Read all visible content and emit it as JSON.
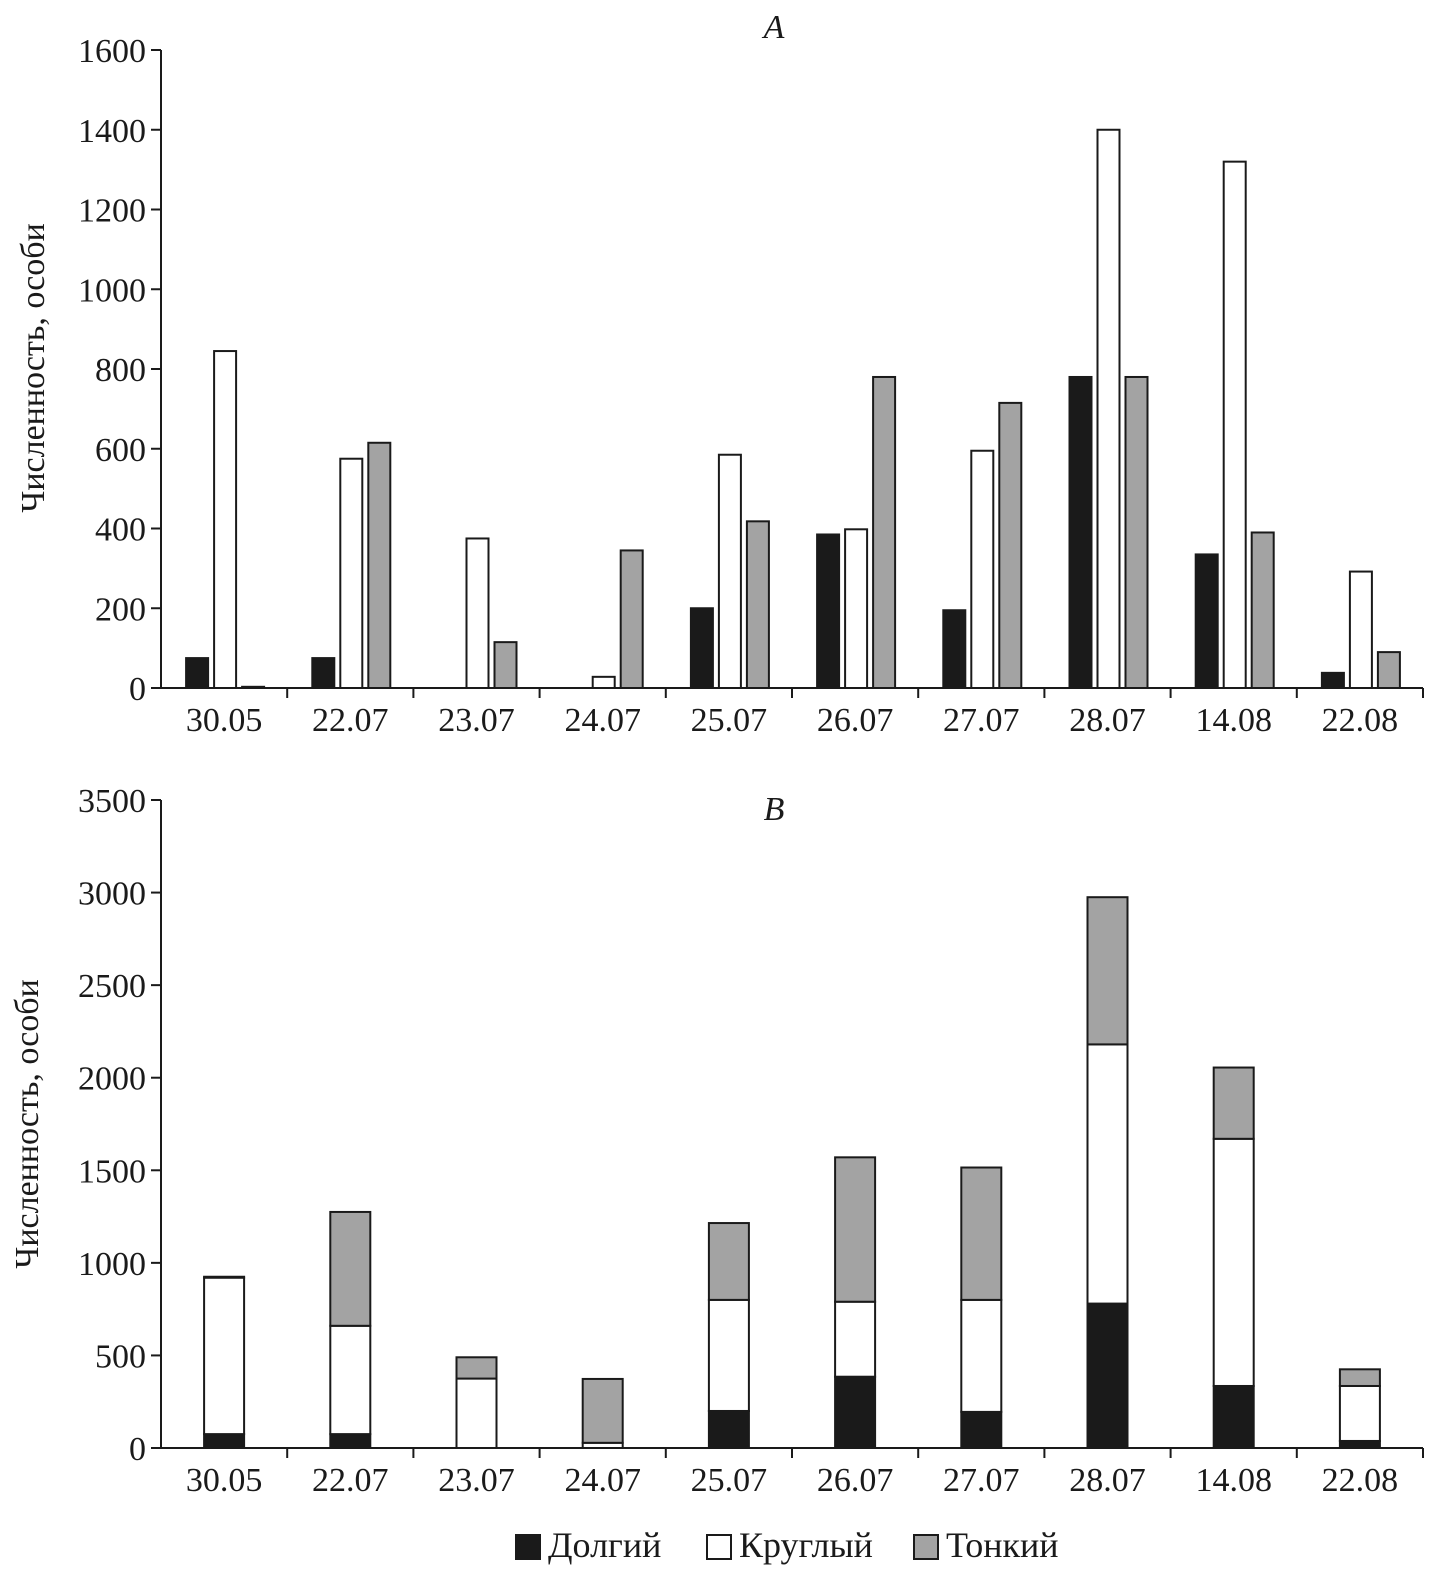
{
  "colors": {
    "Долгий": "#1a1a1a",
    "Круглый": "#ffffff",
    "Тонкий": "#a3a3a3",
    "axis": "#1a1a1a"
  },
  "legend": {
    "placement": "bottom-center",
    "items": [
      "Долгий",
      "Круглый",
      "Тонкий"
    ]
  },
  "chart_data": [
    {
      "panel": "A",
      "type": "bar",
      "title": "A",
      "ylabel": "Численность, особи",
      "xlabel": "",
      "ylim": [
        0,
        1600
      ],
      "yticks": [
        0,
        200,
        400,
        600,
        800,
        1000,
        1200,
        1400,
        1600
      ],
      "categories": [
        "30.05",
        "22.07",
        "23.07",
        "24.07",
        "25.07",
        "26.07",
        "27.07",
        "28.07",
        "14.08",
        "22.08"
      ],
      "series": [
        {
          "name": "Долгий",
          "values": [
            75,
            75,
            0,
            0,
            200,
            385,
            195,
            780,
            335,
            38
          ]
        },
        {
          "name": "Круглый",
          "values": [
            845,
            575,
            375,
            28,
            585,
            398,
            595,
            1400,
            1320,
            292
          ]
        },
        {
          "name": "Тонкий",
          "values": [
            3,
            615,
            115,
            345,
            418,
            780,
            715,
            780,
            390,
            90
          ]
        }
      ]
    },
    {
      "panel": "B",
      "type": "bar",
      "stacked": true,
      "title": "B",
      "ylabel": "Численность, особи",
      "xlabel": "",
      "ylim": [
        0,
        3500
      ],
      "yticks": [
        0,
        500,
        1000,
        1500,
        2000,
        2500,
        3000,
        3500
      ],
      "categories": [
        "30.05",
        "22.07",
        "23.07",
        "24.07",
        "25.07",
        "26.07",
        "27.07",
        "28.07",
        "14.08",
        "22.08"
      ],
      "series": [
        {
          "name": "Долгий",
          "values": [
            75,
            75,
            0,
            0,
            200,
            385,
            195,
            780,
            335,
            38
          ]
        },
        {
          "name": "Круглый",
          "values": [
            845,
            585,
            375,
            28,
            600,
            405,
            605,
            1400,
            1335,
            297
          ]
        },
        {
          "name": "Тонкий",
          "values": [
            5,
            615,
            115,
            345,
            415,
            780,
            715,
            795,
            385,
            90
          ]
        }
      ]
    }
  ]
}
